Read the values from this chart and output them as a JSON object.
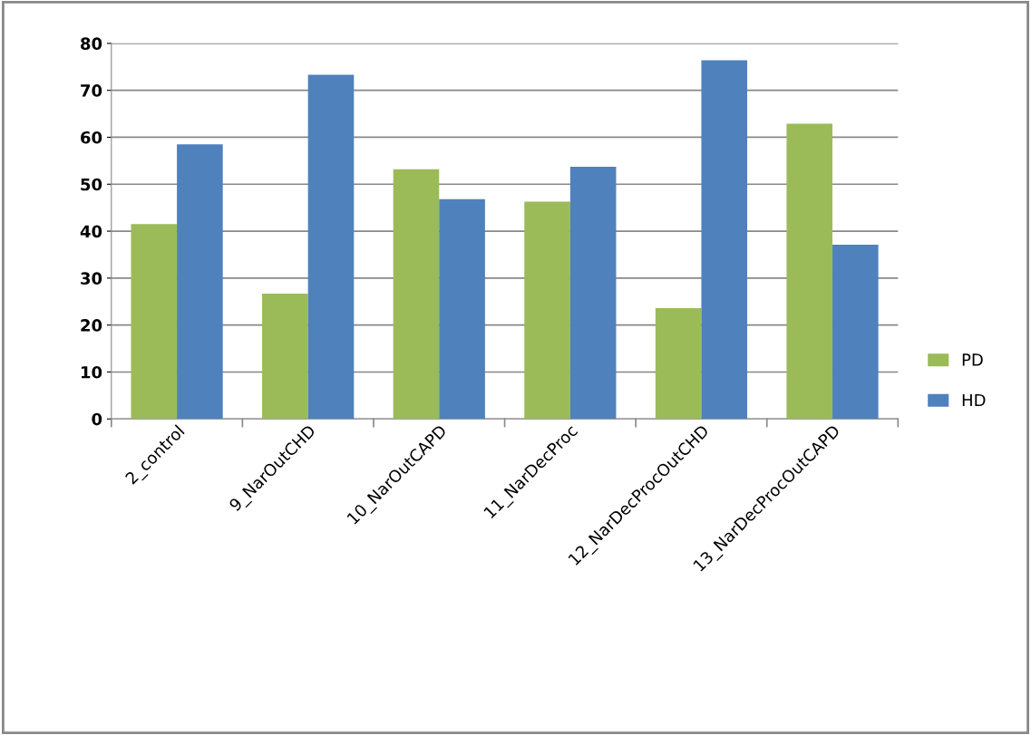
{
  "chart_data": {
    "type": "bar",
    "categories": [
      "2_control",
      "9_NarOutCHD",
      "10_NarOutCAPD",
      "11_NarDecProc",
      "12_NarDecProcOutCHD",
      "13_NarDecProcOutCAPD"
    ],
    "series": [
      {
        "name": "PD",
        "color": "#9bbb59",
        "values": [
          41.5,
          26.7,
          53.2,
          46.3,
          23.6,
          62.9
        ]
      },
      {
        "name": "HD",
        "color": "#4f81bd",
        "values": [
          58.5,
          73.3,
          46.8,
          53.7,
          76.4,
          37.1
        ]
      }
    ],
    "ylim": [
      0,
      80
    ],
    "yticks": [
      0,
      10,
      20,
      30,
      40,
      50,
      60,
      70,
      80
    ],
    "grid": "y",
    "legend": "right"
  }
}
